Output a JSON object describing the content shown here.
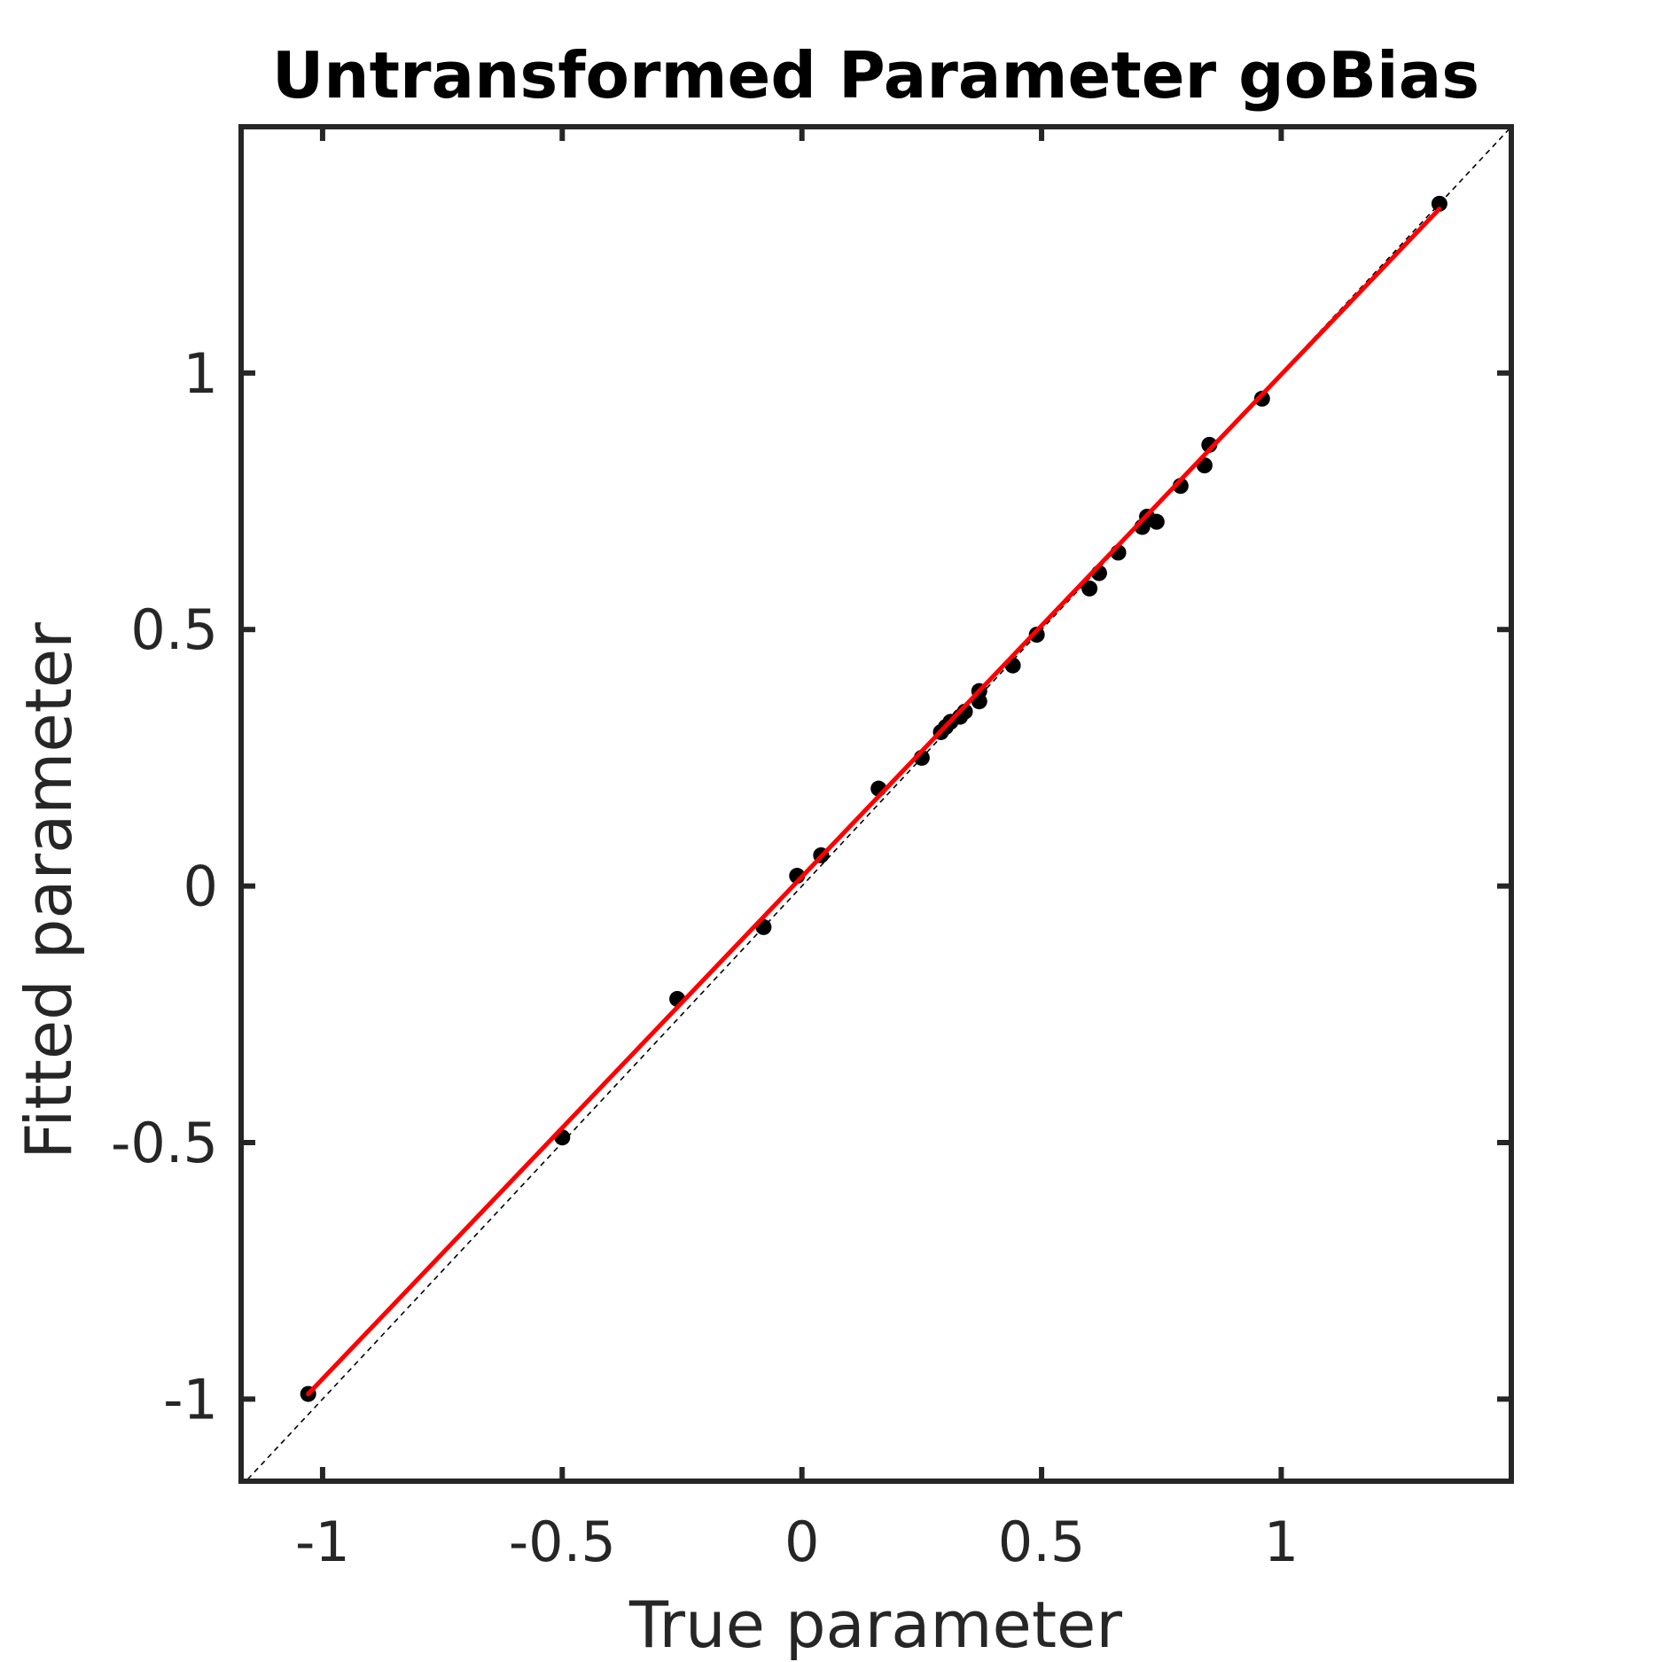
{
  "chart_data": {
    "type": "scatter",
    "title": "Untransformed Parameter goBias",
    "xlabel": "True parameter",
    "ylabel": "Fitted parameter",
    "xlim": [
      -1.17,
      1.48
    ],
    "ylim": [
      -1.16,
      1.48
    ],
    "xticks": [
      {
        "value": -1,
        "label": "-1"
      },
      {
        "value": -0.5,
        "label": "-0.5"
      },
      {
        "value": 0,
        "label": "0"
      },
      {
        "value": 0.5,
        "label": "0.5"
      },
      {
        "value": 1,
        "label": "1"
      }
    ],
    "yticks": [
      {
        "value": -1,
        "label": "-1"
      },
      {
        "value": -0.5,
        "label": "-0.5"
      },
      {
        "value": 0,
        "label": "0"
      },
      {
        "value": 0.5,
        "label": "0.5"
      },
      {
        "value": 1,
        "label": "1"
      }
    ],
    "grid": false,
    "points": [
      {
        "x": -1.03,
        "y": -0.99
      },
      {
        "x": -0.5,
        "y": -0.49
      },
      {
        "x": -0.26,
        "y": -0.22
      },
      {
        "x": -0.08,
        "y": -0.08
      },
      {
        "x": -0.01,
        "y": 0.02
      },
      {
        "x": 0.04,
        "y": 0.06
      },
      {
        "x": 0.16,
        "y": 0.19
      },
      {
        "x": 0.25,
        "y": 0.25
      },
      {
        "x": 0.29,
        "y": 0.3
      },
      {
        "x": 0.3,
        "y": 0.31
      },
      {
        "x": 0.31,
        "y": 0.32
      },
      {
        "x": 0.33,
        "y": 0.33
      },
      {
        "x": 0.34,
        "y": 0.34
      },
      {
        "x": 0.37,
        "y": 0.36
      },
      {
        "x": 0.37,
        "y": 0.38
      },
      {
        "x": 0.44,
        "y": 0.43
      },
      {
        "x": 0.49,
        "y": 0.49
      },
      {
        "x": 0.6,
        "y": 0.58
      },
      {
        "x": 0.62,
        "y": 0.61
      },
      {
        "x": 0.66,
        "y": 0.65
      },
      {
        "x": 0.71,
        "y": 0.7
      },
      {
        "x": 0.72,
        "y": 0.72
      },
      {
        "x": 0.74,
        "y": 0.71
      },
      {
        "x": 0.79,
        "y": 0.78
      },
      {
        "x": 0.84,
        "y": 0.82
      },
      {
        "x": 0.85,
        "y": 0.86
      },
      {
        "x": 0.96,
        "y": 0.95
      },
      {
        "x": 1.33,
        "y": 1.33
      }
    ],
    "fit_line": {
      "x": [
        -1.03,
        1.33
      ],
      "y": [
        -0.99,
        1.32
      ]
    },
    "identity_line": {
      "x": [
        -1.17,
        1.48
      ],
      "y": [
        -1.17,
        1.48
      ]
    },
    "colors": {
      "points": "#000000",
      "fit": "#ff0000",
      "identity": "#000000",
      "axes": "#262626"
    }
  }
}
